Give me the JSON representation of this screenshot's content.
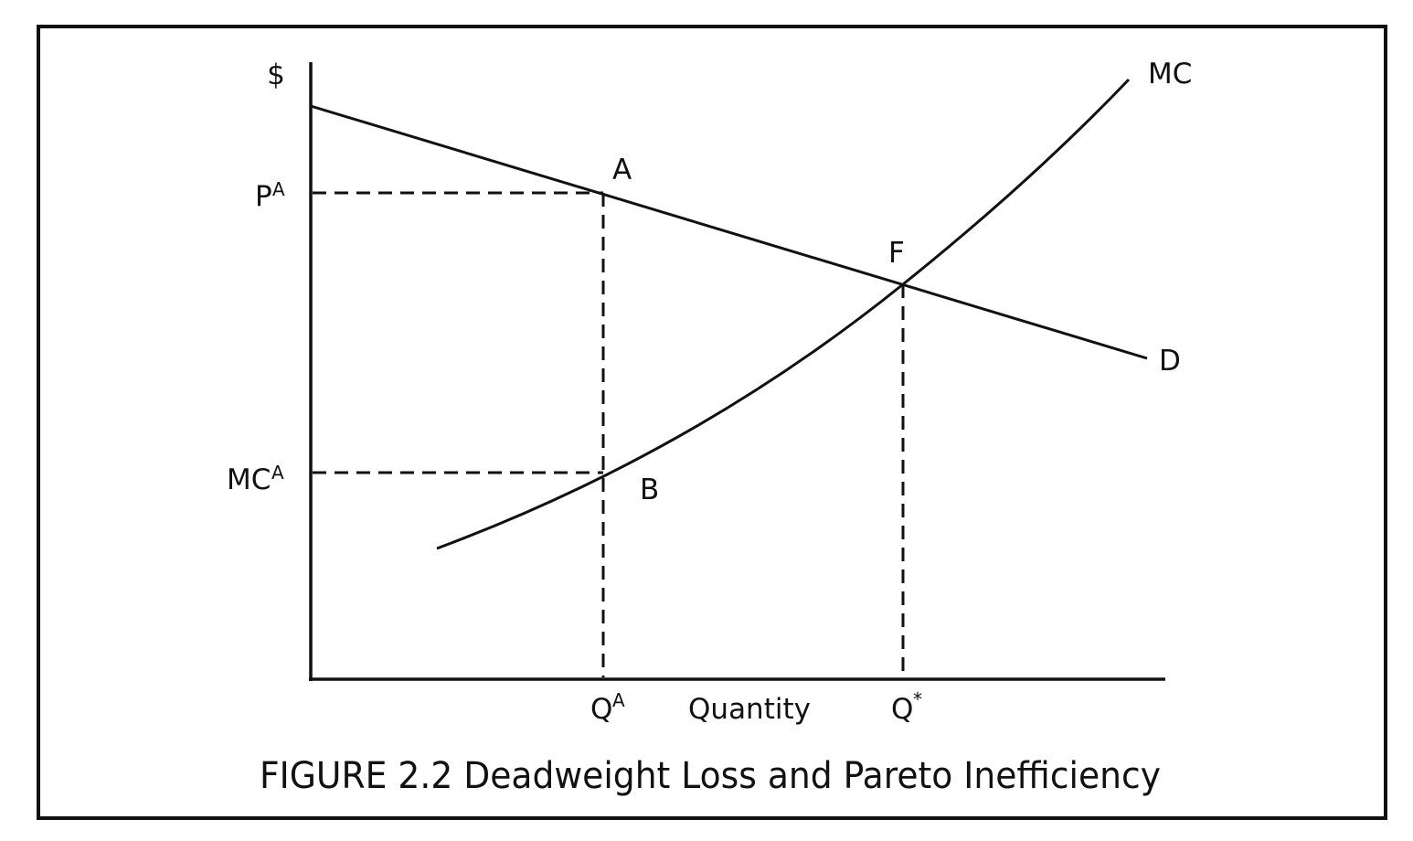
{
  "figure": {
    "y_axis_label": "$",
    "x_axis_label": "Quantity",
    "caption": "FIGURE 2.2 Deadweight Loss and Pareto Inefficiency"
  },
  "curves": {
    "demand_label": "D",
    "mc_label": "MC"
  },
  "points": {
    "a": "A",
    "b": "B",
    "f": "F"
  },
  "y_ticks": {
    "pa_base": "P",
    "pa_sup": "A",
    "mca_base": "MC",
    "mca_sup": "A"
  },
  "x_ticks": {
    "qa_base": "Q",
    "qa_sup": "A",
    "qstar_base": "Q",
    "qstar_sup": "*"
  },
  "colors": {
    "ink": "#111111",
    "background": "#ffffff"
  }
}
